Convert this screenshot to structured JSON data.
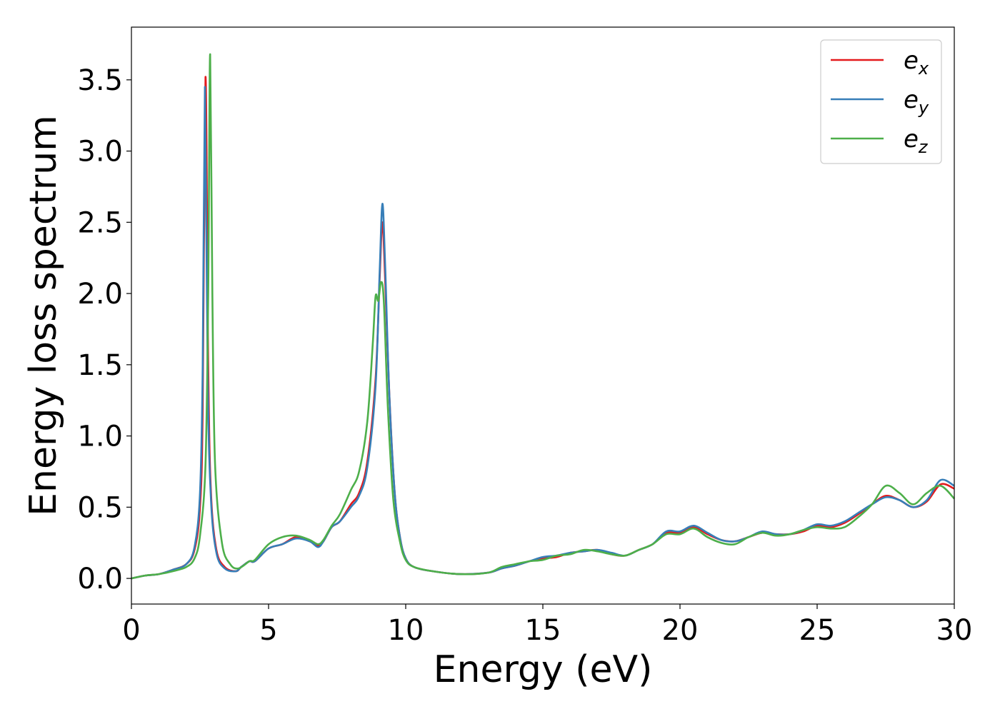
{
  "chart_data": {
    "type": "line",
    "xlabel": "Energy (eV)",
    "ylabel": "Energy loss spectrum",
    "xlim": [
      0,
      30
    ],
    "ylim": [
      -0.18,
      3.87
    ],
    "xticks": [
      0,
      5,
      10,
      15,
      20,
      25,
      30
    ],
    "yticks": [
      0.0,
      0.5,
      1.0,
      1.5,
      2.0,
      2.5,
      3.0,
      3.5
    ],
    "xtick_labels": [
      "0",
      "5",
      "10",
      "15",
      "20",
      "25",
      "30"
    ],
    "ytick_labels": [
      "0.0",
      "0.5",
      "1.0",
      "1.5",
      "2.0",
      "2.5",
      "3.0",
      "3.5"
    ],
    "grid": false,
    "legend_position": "top-right",
    "series": [
      {
        "name": "e_x",
        "label_base": "e",
        "label_sub": "x",
        "color": "#e41a1c",
        "points": [
          [
            0,
            0
          ],
          [
            0.5,
            0.02
          ],
          [
            1,
            0.03
          ],
          [
            1.5,
            0.06
          ],
          [
            2,
            0.1
          ],
          [
            2.3,
            0.2
          ],
          [
            2.5,
            0.5
          ],
          [
            2.6,
            1.2
          ],
          [
            2.7,
            3.52
          ],
          [
            2.8,
            1.5
          ],
          [
            2.9,
            0.6
          ],
          [
            3.1,
            0.2
          ],
          [
            3.4,
            0.08
          ],
          [
            3.8,
            0.05
          ],
          [
            4,
            0.08
          ],
          [
            4.3,
            0.12
          ],
          [
            4.5,
            0.12
          ],
          [
            5,
            0.21
          ],
          [
            5.5,
            0.24
          ],
          [
            6,
            0.29
          ],
          [
            6.5,
            0.26
          ],
          [
            6.8,
            0.23
          ],
          [
            7,
            0.26
          ],
          [
            7.3,
            0.36
          ],
          [
            7.6,
            0.4
          ],
          [
            8,
            0.52
          ],
          [
            8.3,
            0.6
          ],
          [
            8.6,
            0.82
          ],
          [
            8.9,
            1.4
          ],
          [
            9.05,
            2.1
          ],
          [
            9.15,
            2.5
          ],
          [
            9.25,
            2.1
          ],
          [
            9.4,
            1.3
          ],
          [
            9.6,
            0.6
          ],
          [
            9.8,
            0.28
          ],
          [
            10,
            0.14
          ],
          [
            10.3,
            0.08
          ],
          [
            11,
            0.05
          ],
          [
            12,
            0.03
          ],
          [
            13,
            0.04
          ],
          [
            13.5,
            0.07
          ],
          [
            14,
            0.09
          ],
          [
            14.5,
            0.12
          ],
          [
            15,
            0.14
          ],
          [
            15.5,
            0.15
          ],
          [
            16,
            0.18
          ],
          [
            16.5,
            0.19
          ],
          [
            17,
            0.2
          ],
          [
            17.5,
            0.17
          ],
          [
            18,
            0.16
          ],
          [
            18.5,
            0.2
          ],
          [
            19,
            0.24
          ],
          [
            19.5,
            0.32
          ],
          [
            20,
            0.32
          ],
          [
            20.5,
            0.36
          ],
          [
            21,
            0.31
          ],
          [
            21.5,
            0.27
          ],
          [
            22,
            0.26
          ],
          [
            22.5,
            0.29
          ],
          [
            23,
            0.32
          ],
          [
            23.5,
            0.31
          ],
          [
            24,
            0.31
          ],
          [
            24.5,
            0.33
          ],
          [
            25,
            0.37
          ],
          [
            25.5,
            0.36
          ],
          [
            26,
            0.39
          ],
          [
            26.5,
            0.45
          ],
          [
            27,
            0.52
          ],
          [
            27.5,
            0.58
          ],
          [
            28,
            0.55
          ],
          [
            28.5,
            0.5
          ],
          [
            29,
            0.54
          ],
          [
            29.5,
            0.66
          ],
          [
            30,
            0.63
          ]
        ]
      },
      {
        "name": "e_y",
        "label_base": "e",
        "label_sub": "y",
        "color": "#377eb8",
        "points": [
          [
            0,
            0
          ],
          [
            0.5,
            0.02
          ],
          [
            1,
            0.03
          ],
          [
            1.5,
            0.06
          ],
          [
            2,
            0.1
          ],
          [
            2.3,
            0.22
          ],
          [
            2.5,
            0.6
          ],
          [
            2.6,
            1.5
          ],
          [
            2.68,
            3.45
          ],
          [
            2.78,
            1.4
          ],
          [
            2.9,
            0.55
          ],
          [
            3.1,
            0.18
          ],
          [
            3.4,
            0.07
          ],
          [
            3.8,
            0.05
          ],
          [
            4,
            0.08
          ],
          [
            4.3,
            0.12
          ],
          [
            4.5,
            0.12
          ],
          [
            5,
            0.21
          ],
          [
            5.5,
            0.24
          ],
          [
            6,
            0.28
          ],
          [
            6.5,
            0.26
          ],
          [
            6.8,
            0.22
          ],
          [
            7,
            0.26
          ],
          [
            7.3,
            0.36
          ],
          [
            7.6,
            0.4
          ],
          [
            8,
            0.5
          ],
          [
            8.3,
            0.58
          ],
          [
            8.6,
            0.78
          ],
          [
            8.9,
            1.35
          ],
          [
            9.05,
            2.15
          ],
          [
            9.15,
            2.63
          ],
          [
            9.25,
            2.2
          ],
          [
            9.4,
            1.3
          ],
          [
            9.6,
            0.6
          ],
          [
            9.8,
            0.28
          ],
          [
            10,
            0.14
          ],
          [
            10.3,
            0.08
          ],
          [
            11,
            0.05
          ],
          [
            12,
            0.03
          ],
          [
            13,
            0.04
          ],
          [
            13.5,
            0.07
          ],
          [
            14,
            0.09
          ],
          [
            14.5,
            0.12
          ],
          [
            15,
            0.15
          ],
          [
            15.5,
            0.16
          ],
          [
            16,
            0.18
          ],
          [
            16.5,
            0.19
          ],
          [
            17,
            0.2
          ],
          [
            17.5,
            0.18
          ],
          [
            18,
            0.16
          ],
          [
            18.5,
            0.2
          ],
          [
            19,
            0.24
          ],
          [
            19.5,
            0.33
          ],
          [
            20,
            0.33
          ],
          [
            20.5,
            0.37
          ],
          [
            21,
            0.32
          ],
          [
            21.5,
            0.27
          ],
          [
            22,
            0.26
          ],
          [
            22.5,
            0.29
          ],
          [
            23,
            0.33
          ],
          [
            23.5,
            0.31
          ],
          [
            24,
            0.31
          ],
          [
            24.5,
            0.34
          ],
          [
            25,
            0.38
          ],
          [
            25.5,
            0.37
          ],
          [
            26,
            0.4
          ],
          [
            26.5,
            0.46
          ],
          [
            27,
            0.52
          ],
          [
            27.5,
            0.57
          ],
          [
            28,
            0.55
          ],
          [
            28.5,
            0.5
          ],
          [
            29,
            0.55
          ],
          [
            29.5,
            0.69
          ],
          [
            30,
            0.65
          ]
        ]
      },
      {
        "name": "e_z",
        "label_base": "e",
        "label_sub": "z",
        "color": "#4daf4a",
        "points": [
          [
            0,
            0
          ],
          [
            0.5,
            0.02
          ],
          [
            1,
            0.03
          ],
          [
            1.5,
            0.05
          ],
          [
            2,
            0.08
          ],
          [
            2.3,
            0.14
          ],
          [
            2.5,
            0.3
          ],
          [
            2.7,
            0.8
          ],
          [
            2.8,
            2.0
          ],
          [
            2.87,
            3.68
          ],
          [
            2.95,
            2.0
          ],
          [
            3.05,
            0.8
          ],
          [
            3.3,
            0.25
          ],
          [
            3.6,
            0.1
          ],
          [
            3.9,
            0.07
          ],
          [
            4.3,
            0.12
          ],
          [
            4.5,
            0.13
          ],
          [
            5,
            0.24
          ],
          [
            5.5,
            0.29
          ],
          [
            6,
            0.3
          ],
          [
            6.5,
            0.27
          ],
          [
            6.8,
            0.24
          ],
          [
            7,
            0.27
          ],
          [
            7.3,
            0.37
          ],
          [
            7.6,
            0.45
          ],
          [
            8,
            0.62
          ],
          [
            8.3,
            0.75
          ],
          [
            8.6,
            1.1
          ],
          [
            8.8,
            1.65
          ],
          [
            8.9,
            1.98
          ],
          [
            9.0,
            1.95
          ],
          [
            9.1,
            2.08
          ],
          [
            9.2,
            1.95
          ],
          [
            9.35,
            1.2
          ],
          [
            9.55,
            0.55
          ],
          [
            9.8,
            0.25
          ],
          [
            10,
            0.13
          ],
          [
            10.3,
            0.08
          ],
          [
            11,
            0.05
          ],
          [
            12,
            0.03
          ],
          [
            13,
            0.04
          ],
          [
            13.5,
            0.08
          ],
          [
            14,
            0.1
          ],
          [
            14.5,
            0.12
          ],
          [
            15,
            0.13
          ],
          [
            15.5,
            0.16
          ],
          [
            16,
            0.17
          ],
          [
            16.5,
            0.2
          ],
          [
            17,
            0.19
          ],
          [
            17.5,
            0.17
          ],
          [
            18,
            0.16
          ],
          [
            18.5,
            0.2
          ],
          [
            19,
            0.24
          ],
          [
            19.5,
            0.31
          ],
          [
            20,
            0.31
          ],
          [
            20.5,
            0.35
          ],
          [
            21,
            0.29
          ],
          [
            21.5,
            0.25
          ],
          [
            22,
            0.24
          ],
          [
            22.5,
            0.29
          ],
          [
            23,
            0.32
          ],
          [
            23.5,
            0.3
          ],
          [
            24,
            0.31
          ],
          [
            24.5,
            0.34
          ],
          [
            25,
            0.36
          ],
          [
            25.5,
            0.35
          ],
          [
            26,
            0.36
          ],
          [
            26.5,
            0.43
          ],
          [
            27,
            0.52
          ],
          [
            27.5,
            0.65
          ],
          [
            28,
            0.6
          ],
          [
            28.5,
            0.52
          ],
          [
            29,
            0.6
          ],
          [
            29.5,
            0.65
          ],
          [
            30,
            0.56
          ]
        ]
      }
    ]
  }
}
